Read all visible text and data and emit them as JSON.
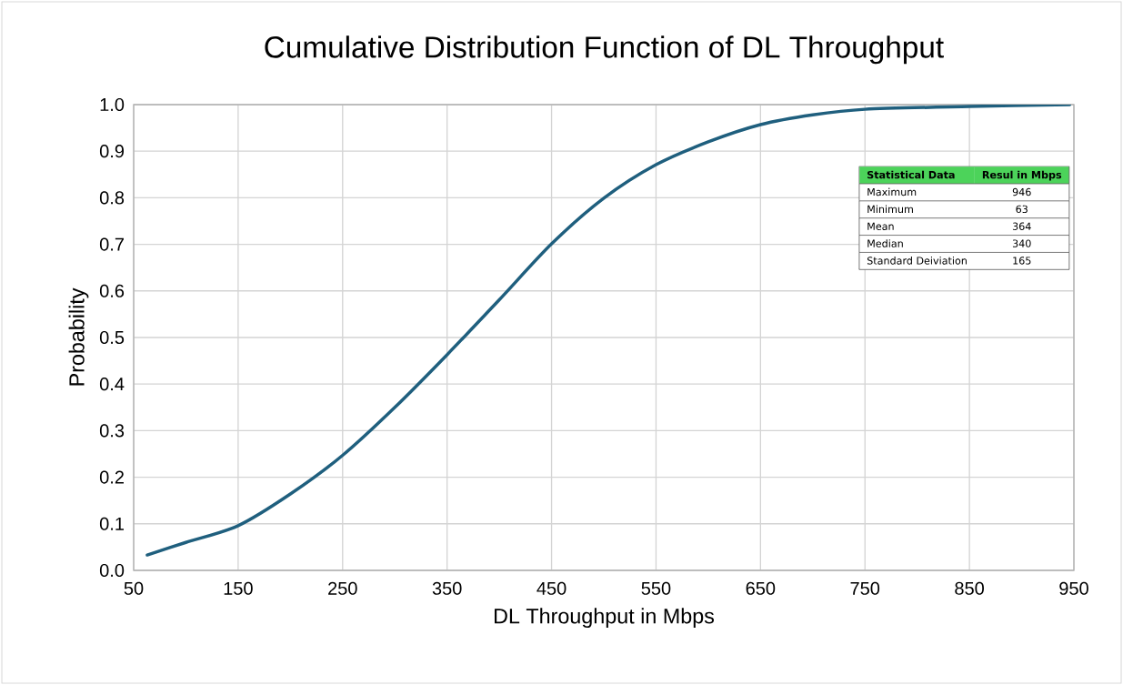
{
  "chart_data": {
    "type": "line",
    "title": "Cumulative Distribution Function of DL Throughput",
    "xlabel": "DL Throughput in Mbps",
    "ylabel": "Probability",
    "x": [
      63,
      100,
      150,
      200,
      250,
      300,
      350,
      400,
      450,
      500,
      550,
      600,
      650,
      700,
      750,
      850,
      946
    ],
    "series": [
      {
        "color": "#1f5f7e",
        "values": [
          0.033,
          0.06,
          0.096,
          0.164,
          0.247,
          0.35,
          0.463,
          0.581,
          0.701,
          0.799,
          0.871,
          0.92,
          0.957,
          0.978,
          0.99,
          0.996,
          1.0
        ]
      }
    ],
    "xlim": [
      50,
      950
    ],
    "xticks": [
      50,
      150,
      250,
      350,
      450,
      550,
      650,
      750,
      850,
      950
    ],
    "ylim": [
      0,
      1
    ],
    "yticks": [
      {
        "value": 0,
        "label": "0.0"
      },
      {
        "value": 0.1,
        "label": "0.1"
      },
      {
        "value": 0.2,
        "label": "0.2"
      },
      {
        "value": 0.3,
        "label": "0.3"
      },
      {
        "value": 0.4,
        "label": "0.4"
      },
      {
        "value": 0.5,
        "label": "0.5"
      },
      {
        "value": 0.6,
        "label": "0.6"
      },
      {
        "value": 0.7,
        "label": "0.7"
      },
      {
        "value": 0.8,
        "label": "0.8"
      },
      {
        "value": 0.9,
        "label": "0.9"
      },
      {
        "value": 1,
        "label": "1.0"
      }
    ],
    "grid": true,
    "marker": "none",
    "line_style": "solid",
    "annotations": [
      "Statistical Data",
      "Resul in Mbps",
      "Maximum",
      "946",
      "Minimum",
      "63",
      "Mean",
      "364",
      "Median",
      "340",
      "Standard Deiviation",
      "165"
    ]
  }
}
